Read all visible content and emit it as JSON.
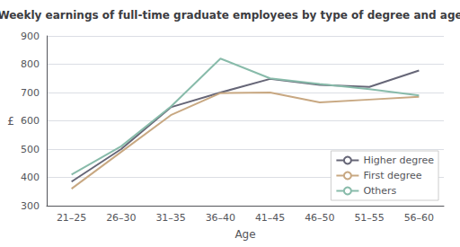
{
  "chart_data": {
    "type": "line",
    "title": "Weekly earnings of full-time graduate employees by type of degree and age",
    "xlabel": "Age",
    "ylabel": "£",
    "categories": [
      "21–25",
      "26–30",
      "31–35",
      "36–40",
      "41–45",
      "46–50",
      "51–55",
      "56–60"
    ],
    "series": [
      {
        "name": "Higher degree",
        "color": "#666677",
        "values": [
          385,
          500,
          648,
          700,
          748,
          727,
          720,
          778
        ]
      },
      {
        "name": "First degree",
        "color": "#c8a882",
        "values": [
          360,
          490,
          620,
          698,
          700,
          665,
          675,
          685
        ]
      },
      {
        "name": "Others",
        "color": "#88bbaa",
        "values": [
          410,
          510,
          650,
          820,
          750,
          730,
          712,
          690
        ]
      }
    ],
    "ylim": [
      300,
      900
    ],
    "yticks": [
      300,
      400,
      500,
      600,
      700,
      800,
      900
    ],
    "grid": true,
    "legend": "lower right"
  }
}
